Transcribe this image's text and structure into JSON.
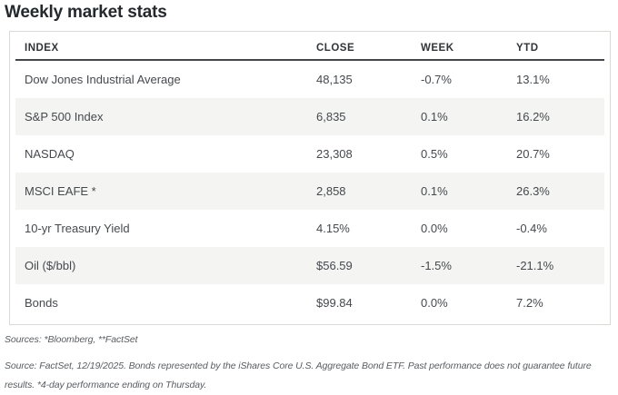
{
  "page": {
    "title": "Weekly market stats"
  },
  "table": {
    "headers": {
      "index": "INDEX",
      "close": "CLOSE",
      "week": "WEEK",
      "ytd": "YTD"
    },
    "rows": [
      {
        "index": "Dow Jones Industrial Average",
        "close": "48,135",
        "week": "-0.7%",
        "ytd": "13.1%"
      },
      {
        "index": "S&P 500 Index",
        "close": "6,835",
        "week": "0.1%",
        "ytd": "16.2%"
      },
      {
        "index": "NASDAQ",
        "close": "23,308",
        "week": "0.5%",
        "ytd": "20.7%"
      },
      {
        "index": "MSCI EAFE *",
        "close": "2,858",
        "week": "0.1%",
        "ytd": "26.3%"
      },
      {
        "index": "10-yr Treasury Yield",
        "close": "4.15%",
        "week": "0.0%",
        "ytd": "-0.4%"
      },
      {
        "index": "Oil ($/bbl)",
        "close": "$56.59",
        "week": "-1.5%",
        "ytd": "-21.1%"
      },
      {
        "index": "Bonds",
        "close": "$99.84",
        "week": "0.0%",
        "ytd": "7.2%"
      }
    ]
  },
  "footnotes": {
    "sources": "Sources: *Bloomberg, **FactSet",
    "disclaimer": "Source: FactSet, 12/19/2025. Bonds represented by the iShares Core U.S. Aggregate Bond ETF. Past performance does not guarantee future results. *4-day performance ending on Thursday."
  },
  "colors": {
    "stripe": "#f4f4f2",
    "table_border": "#d9d9d6",
    "header_rule": "#43474b",
    "title_text": "#24292e",
    "body_text": "#45494e",
    "footnote_text": "#595d61"
  },
  "chart_data": {
    "type": "table",
    "title": "Weekly market stats",
    "columns": [
      "INDEX",
      "CLOSE",
      "WEEK",
      "YTD"
    ],
    "rows": [
      [
        "Dow Jones Industrial Average",
        "48,135",
        "-0.7%",
        "13.1%"
      ],
      [
        "S&P 500 Index",
        "6,835",
        "0.1%",
        "16.2%"
      ],
      [
        "NASDAQ",
        "23,308",
        "0.5%",
        "20.7%"
      ],
      [
        "MSCI EAFE *",
        "2,858",
        "0.1%",
        "26.3%"
      ],
      [
        "10-yr Treasury Yield",
        "4.15%",
        "0.0%",
        "-0.4%"
      ],
      [
        "Oil ($/bbl)",
        "$56.59",
        "-1.5%",
        "-21.1%"
      ],
      [
        "Bonds",
        "$99.84",
        "0.0%",
        "7.2%"
      ]
    ],
    "notes": [
      "Sources: *Bloomberg, **FactSet",
      "Source: FactSet, 12/19/2025. Bonds represented by the iShares Core U.S. Aggregate Bond ETF. Past performance does not guarantee future results. *4-day performance ending on Thursday."
    ],
    "layout": {
      "striped_rows": "even rows shaded",
      "alignment": "all columns left-aligned"
    }
  }
}
